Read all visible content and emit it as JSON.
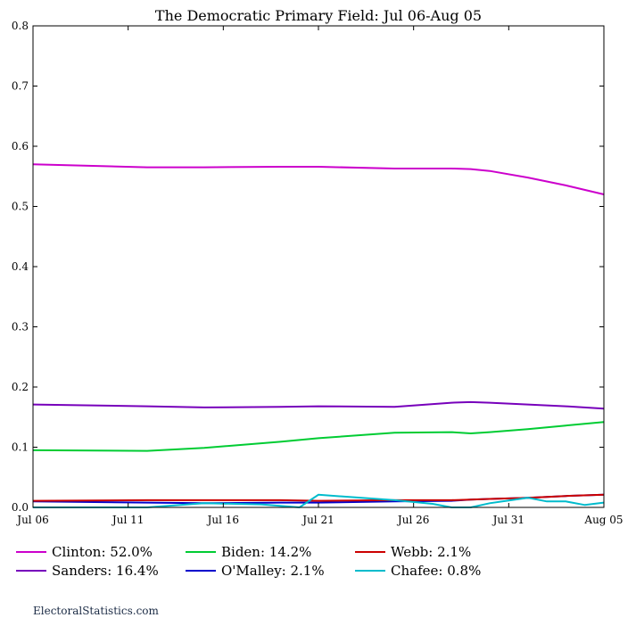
{
  "chart_data": {
    "type": "line",
    "title": "The Democratic Primary Field: Jul 06-Aug 05",
    "xlabel": "",
    "ylabel": "",
    "x_dates": [
      "Jul 06",
      "Jul 12",
      "Jul 15",
      "Jul 19",
      "Jul 21",
      "Jul 25",
      "Jul 28",
      "Jul 29",
      "Jul 30",
      "Aug 01",
      "Aug 03",
      "Aug 05"
    ],
    "xticks": [
      "Jul 06",
      "Jul 11",
      "Jul 16",
      "Jul 21",
      "Jul 26",
      "Jul 31",
      "Aug 05"
    ],
    "xlim": [
      "Jul 06",
      "Aug 05"
    ],
    "yticks": [
      "0.0",
      "0.1",
      "0.2",
      "0.3",
      "0.4",
      "0.5",
      "0.6",
      "0.7",
      "0.8"
    ],
    "ylim": [
      0,
      0.8
    ],
    "grid": false,
    "legend_position": "bottom",
    "series": [
      {
        "name": "Clinton: 52.0%",
        "color": "#cc00cc",
        "points": [
          [
            "Jul 06",
            0.57
          ],
          [
            "Jul 12",
            0.565
          ],
          [
            "Jul 15",
            0.565
          ],
          [
            "Jul 19",
            0.566
          ],
          [
            "Jul 21",
            0.566
          ],
          [
            "Jul 25",
            0.563
          ],
          [
            "Jul 28",
            0.563
          ],
          [
            "Jul 29",
            0.562
          ],
          [
            "Jul 30",
            0.559
          ],
          [
            "Aug 01",
            0.548
          ],
          [
            "Aug 03",
            0.535
          ],
          [
            "Aug 05",
            0.52
          ]
        ]
      },
      {
        "name": "Sanders: 16.4%",
        "color": "#7700bb",
        "points": [
          [
            "Jul 06",
            0.171
          ],
          [
            "Jul 12",
            0.168
          ],
          [
            "Jul 15",
            0.166
          ],
          [
            "Jul 19",
            0.167
          ],
          [
            "Jul 21",
            0.168
          ],
          [
            "Jul 25",
            0.167
          ],
          [
            "Jul 28",
            0.174
          ],
          [
            "Jul 29",
            0.175
          ],
          [
            "Jul 30",
            0.174
          ],
          [
            "Aug 01",
            0.171
          ],
          [
            "Aug 03",
            0.168
          ],
          [
            "Aug 05",
            0.164
          ]
        ]
      },
      {
        "name": "Biden: 14.2%",
        "color": "#00cc33",
        "points": [
          [
            "Jul 06",
            0.095
          ],
          [
            "Jul 12",
            0.094
          ],
          [
            "Jul 15",
            0.099
          ],
          [
            "Jul 19",
            0.109
          ],
          [
            "Jul 21",
            0.115
          ],
          [
            "Jul 25",
            0.124
          ],
          [
            "Jul 28",
            0.125
          ],
          [
            "Jul 29",
            0.123
          ],
          [
            "Jul 30",
            0.125
          ],
          [
            "Aug 01",
            0.13
          ],
          [
            "Aug 03",
            0.136
          ],
          [
            "Aug 05",
            0.142
          ]
        ]
      },
      {
        "name": "O'Malley: 2.1%",
        "color": "#0000cc",
        "points": [
          [
            "Jul 06",
            0.01
          ],
          [
            "Jul 12",
            0.008
          ],
          [
            "Jul 15",
            0.007
          ],
          [
            "Jul 19",
            0.008
          ],
          [
            "Jul 21",
            0.008
          ],
          [
            "Jul 25",
            0.01
          ],
          [
            "Jul 28",
            0.011
          ],
          [
            "Jul 29",
            0.013
          ],
          [
            "Jul 30",
            0.014
          ],
          [
            "Aug 01",
            0.016
          ],
          [
            "Aug 03",
            0.019
          ],
          [
            "Aug 05",
            0.021
          ]
        ]
      },
      {
        "name": "Webb: 2.1%",
        "color": "#cc0000",
        "points": [
          [
            "Jul 06",
            0.011
          ],
          [
            "Jul 12",
            0.012
          ],
          [
            "Jul 15",
            0.012
          ],
          [
            "Jul 19",
            0.012
          ],
          [
            "Jul 21",
            0.011
          ],
          [
            "Jul 25",
            0.012
          ],
          [
            "Jul 28",
            0.012
          ],
          [
            "Jul 29",
            0.013
          ],
          [
            "Jul 30",
            0.014
          ],
          [
            "Aug 01",
            0.016
          ],
          [
            "Aug 03",
            0.019
          ],
          [
            "Aug 05",
            0.021
          ]
        ]
      },
      {
        "name": "Chafee: 0.8%",
        "color": "#00bbcc",
        "points": [
          [
            "Jul 06",
            0.0
          ],
          [
            "Jul 12",
            0.0
          ],
          [
            "Jul 15",
            0.007
          ],
          [
            "Jul 18",
            0.005
          ],
          [
            "Jul 20",
            0.0
          ],
          [
            "Jul 21",
            0.021
          ],
          [
            "Jul 25",
            0.012
          ],
          [
            "Jul 27",
            0.006
          ],
          [
            "Jul 28",
            0.0
          ],
          [
            "Jul 29",
            0.0
          ],
          [
            "Jul 30",
            0.007
          ],
          [
            "Aug 01",
            0.016
          ],
          [
            "Aug 02",
            0.01
          ],
          [
            "Aug 03",
            0.01
          ],
          [
            "Aug 04",
            0.004
          ],
          [
            "Aug 05",
            0.008
          ]
        ]
      }
    ]
  },
  "footer": "ElectoralStatistics.com"
}
